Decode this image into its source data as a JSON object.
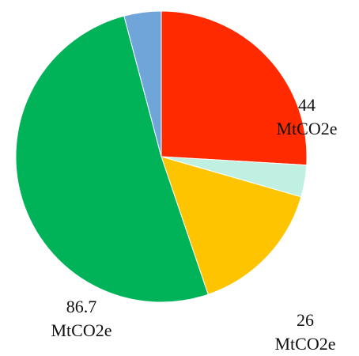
{
  "chart_data": {
    "type": "pie",
    "title": "",
    "unit": "MtCO2e",
    "slices": [
      {
        "value": 44,
        "color": "#ff2a00",
        "label_value": "44",
        "label_unit": "MtCO2e"
      },
      {
        "value": 6,
        "color": "#bff0e1",
        "label_value": "",
        "label_unit": ""
      },
      {
        "value": 26,
        "color": "#ffc400",
        "label_value": "26",
        "label_unit": "MtCO2e"
      },
      {
        "value": 86.7,
        "color": "#00b359",
        "label_value": "86.7",
        "label_unit": "MtCO2e"
      },
      {
        "value": 7,
        "color": "#6fa5d9",
        "label_value": "",
        "label_unit": ""
      }
    ],
    "legend": "none",
    "start_angle_deg": 0,
    "direction": "clockwise"
  }
}
